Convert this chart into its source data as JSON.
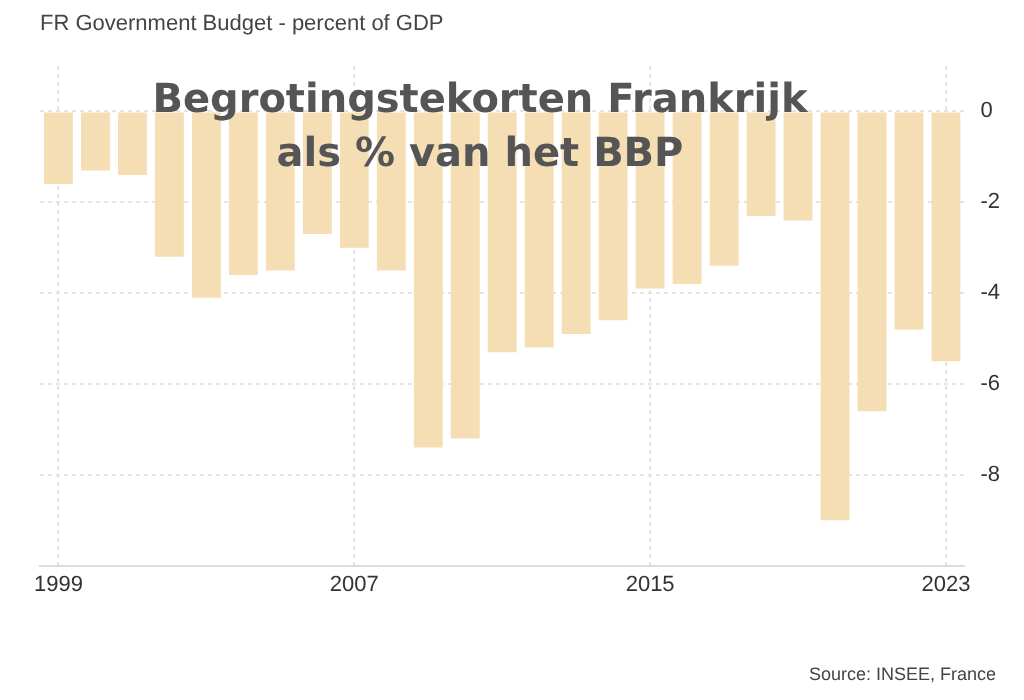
{
  "chart_data": {
    "type": "bar",
    "title": "Begrotingstekorten Frankrijk als % van het BBP",
    "subtitle": "FR Government Budget - percent of GDP",
    "categories": [
      "1999",
      null,
      null,
      null,
      null,
      null,
      null,
      null,
      "2007",
      null,
      null,
      null,
      null,
      null,
      null,
      null,
      "2015",
      null,
      null,
      null,
      null,
      null,
      null,
      null,
      "2023"
    ],
    "values": [
      -1.6,
      -1.3,
      -1.4,
      -3.2,
      -4.1,
      -3.6,
      -3.5,
      -2.7,
      -3.0,
      -3.5,
      -7.4,
      -7.2,
      -5.3,
      -5.2,
      -4.9,
      -4.6,
      -3.9,
      -3.8,
      -3.4,
      -2.3,
      -2.4,
      -9.0,
      -6.6,
      -4.8,
      -5.5
    ],
    "color": "#f5deb3",
    "ylim": [
      -10,
      1
    ],
    "yticks": [
      0,
      -2,
      -4,
      -6,
      -8
    ],
    "grid": true,
    "annotations": [
      "Source: INSEE, France"
    ]
  }
}
